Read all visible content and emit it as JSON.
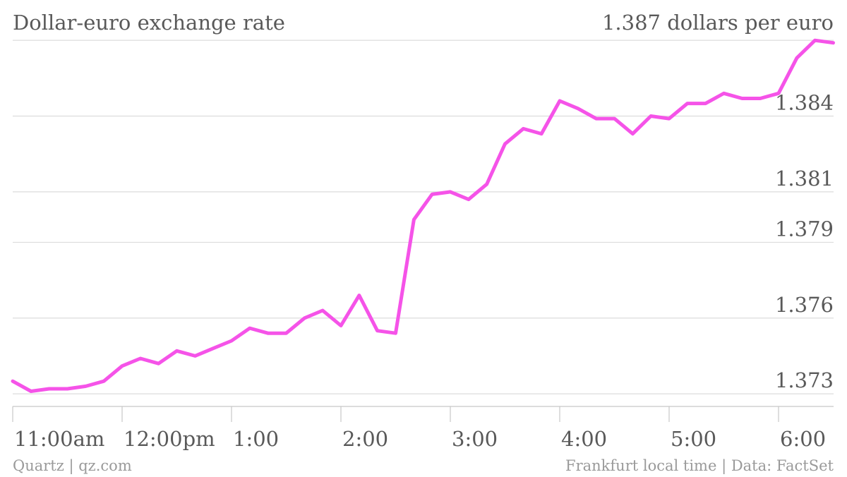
{
  "chart_data": {
    "type": "line",
    "title": "Dollar-euro exchange rate",
    "unit_label": "1.387 dollars per euro",
    "ylim": [
      1.3725,
      1.3872
    ],
    "yticks": [
      {
        "value": 1.373,
        "label": "1.373"
      },
      {
        "value": 1.376,
        "label": "1.376"
      },
      {
        "value": 1.379,
        "label": "1.379"
      },
      {
        "value": 1.381,
        "label": "1.381"
      },
      {
        "value": 1.384,
        "label": "1.384"
      },
      {
        "value": 1.387,
        "label": ""
      }
    ],
    "xlim": [
      0,
      7.53
    ],
    "xticks": [
      {
        "value": 0,
        "label": "11:00am"
      },
      {
        "value": 1,
        "label": "12:00pm"
      },
      {
        "value": 2,
        "label": "1:00"
      },
      {
        "value": 3,
        "label": "2:00"
      },
      {
        "value": 4,
        "label": "3:00"
      },
      {
        "value": 5,
        "label": "4:00"
      },
      {
        "value": 6,
        "label": "5:00"
      },
      {
        "value": 7,
        "label": "6:00"
      }
    ],
    "grid": true,
    "series": [
      {
        "color": "#f553e8",
        "x": [
          0,
          0.167,
          0.333,
          0.5,
          0.667,
          0.833,
          1.0,
          1.167,
          1.333,
          1.5,
          1.667,
          1.833,
          2.0,
          2.167,
          2.333,
          2.5,
          2.667,
          2.833,
          3.0,
          3.167,
          3.333,
          3.5,
          3.667,
          3.833,
          4.0,
          4.167,
          4.333,
          4.5,
          4.667,
          4.833,
          5.0,
          5.167,
          5.333,
          5.5,
          5.667,
          5.833,
          6.0,
          6.167,
          6.333,
          6.5,
          6.667,
          6.833,
          7.0,
          7.167,
          7.333,
          7.5
        ],
        "y": [
          1.3735,
          1.3731,
          1.3732,
          1.3732,
          1.3733,
          1.3735,
          1.3741,
          1.3744,
          1.3742,
          1.3747,
          1.3745,
          1.3748,
          1.3751,
          1.3756,
          1.3754,
          1.3754,
          1.376,
          1.3763,
          1.3757,
          1.3769,
          1.3755,
          1.3754,
          1.3799,
          1.3809,
          1.381,
          1.3807,
          1.3813,
          1.3829,
          1.3835,
          1.3833,
          1.3846,
          1.3843,
          1.3839,
          1.3839,
          1.3833,
          1.384,
          1.3839,
          1.3845,
          1.3845,
          1.3849,
          1.3847,
          1.3847,
          1.3849,
          1.3863,
          1.387,
          1.3869
        ]
      }
    ]
  },
  "footer": {
    "left": "Quartz | qz.com",
    "right": "Frankfurt local time | Data: FactSet"
  }
}
